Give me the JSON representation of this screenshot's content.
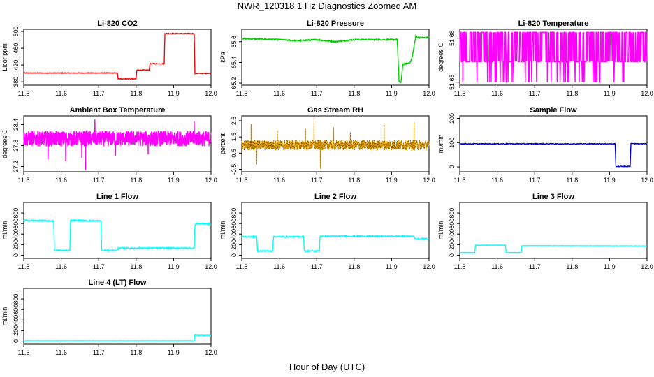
{
  "figure": {
    "title": "NWR_120318  1 Hz Diagnostics Zoomed AM",
    "xlabel": "Hour of Day (UTC)"
  },
  "chart_data": [
    {
      "type": "line",
      "title": "Li-820 CO2",
      "ylabel": "Licor ppm",
      "color": "#ff0000",
      "xlim": [
        11.5,
        12.0
      ],
      "ylim": [
        372,
        505
      ],
      "xticks": [
        "11.5",
        "11.6",
        "11.7",
        "11.8",
        "11.9",
        "12.0"
      ],
      "yticks": [
        380,
        420,
        460,
        500
      ],
      "noise": 0.8,
      "series": [
        {
          "x": [
            11.5,
            11.75,
            11.752,
            11.8,
            11.802,
            11.835,
            11.837,
            11.875,
            11.877,
            11.955,
            11.957,
            12.0
          ],
          "values": [
            401,
            401,
            387,
            387,
            408,
            408,
            423,
            423,
            495,
            495,
            400,
            400
          ]
        }
      ]
    },
    {
      "type": "line",
      "title": "Li-820 Pressure",
      "ylabel": "kPa",
      "color": "#00cc00",
      "xlim": [
        11.5,
        12.0
      ],
      "ylim": [
        65.18,
        65.72
      ],
      "xticks": [
        "11.5",
        "11.6",
        "11.7",
        "11.8",
        "11.9",
        "12.0"
      ],
      "yticks": [
        65.2,
        65.4,
        65.6
      ],
      "noise": 0.006,
      "series": [
        {
          "x": [
            11.5,
            11.6,
            11.65,
            11.7,
            11.75,
            11.8,
            11.85,
            11.9,
            11.915,
            11.92,
            11.925,
            11.93,
            11.95,
            11.955,
            11.965,
            11.97,
            12.0
          ],
          "values": [
            65.63,
            65.62,
            65.61,
            65.62,
            65.6,
            65.62,
            65.62,
            65.62,
            65.62,
            65.22,
            65.2,
            65.38,
            65.4,
            65.45,
            65.66,
            65.64,
            65.64
          ]
        }
      ]
    },
    {
      "type": "line",
      "title": "Li-820 Temperature",
      "ylabel": "degrees C",
      "color": "#ff00ff",
      "xlim": [
        11.5,
        12.0
      ],
      "ylim": [
        51.648,
        51.686
      ],
      "xticks": [
        "11.5",
        "11.6",
        "11.7",
        "11.8",
        "11.9",
        "12.0"
      ],
      "yticks": [
        51.65,
        51.68
      ],
      "levels": [
        51.664,
        51.684
      ],
      "low": 51.65,
      "series": [
        {
          "name": "",
          "values": []
        }
      ]
    },
    {
      "type": "line",
      "title": "Ambient Box Temperature",
      "ylabel": "degrees C",
      "color": "#ff00ff",
      "xlim": [
        11.5,
        12.0
      ],
      "ylim": [
        27.05,
        28.65
      ],
      "xticks": [
        "11.5",
        "11.6",
        "11.7",
        "11.8",
        "11.9",
        "12.0"
      ],
      "yticks": [
        27.2,
        27.8,
        28.4
      ],
      "center": 28.0,
      "spread": 0.22,
      "spikes": [
        [
          11.565,
          27.4
        ],
        [
          11.612,
          27.35
        ],
        [
          11.655,
          27.45
        ],
        [
          11.665,
          27.1
        ],
        [
          11.745,
          27.5
        ],
        [
          11.832,
          27.55
        ],
        [
          11.69,
          28.55
        ],
        [
          11.955,
          28.5
        ]
      ],
      "series": [
        {
          "name": "",
          "values": []
        }
      ]
    },
    {
      "type": "line",
      "title": "Gas Stream RH",
      "ylabel": "percent",
      "color": "#e69f00",
      "marker": "#000000",
      "xlim": [
        11.5,
        12.0
      ],
      "ylim": [
        -0.65,
        2.8
      ],
      "xticks": [
        "11.5",
        "11.6",
        "11.7",
        "11.8",
        "11.9",
        "12.0"
      ],
      "yticks": [
        -0.5,
        0.5,
        1.5,
        2.5
      ],
      "center": 1.0,
      "spread": 0.32,
      "spikes": [
        [
          11.525,
          2.3
        ],
        [
          11.54,
          -0.2
        ],
        [
          11.595,
          1.9
        ],
        [
          11.67,
          2.0
        ],
        [
          11.693,
          2.65
        ],
        [
          11.71,
          -0.45
        ],
        [
          11.745,
          2.1
        ],
        [
          11.79,
          1.8
        ],
        [
          11.88,
          2.3
        ],
        [
          11.96,
          2.4
        ]
      ],
      "series": [
        {
          "name": "",
          "values": []
        }
      ]
    },
    {
      "type": "line",
      "title": "Sample Flow",
      "ylabel": "ml/min",
      "color": "#0000cc",
      "xlim": [
        11.5,
        12.0
      ],
      "ylim": [
        -20,
        210
      ],
      "xticks": [
        "11.5",
        "11.6",
        "11.7",
        "11.8",
        "11.9",
        "12.0"
      ],
      "yticks": [
        0,
        100,
        200
      ],
      "noise": 1.5,
      "series": [
        {
          "x": [
            11.5,
            11.915,
            11.917,
            11.955,
            11.957,
            11.97,
            12.0
          ],
          "values": [
            95,
            95,
            2,
            2,
            97,
            95,
            95
          ]
        }
      ]
    },
    {
      "type": "line",
      "title": "Line 1 Flow",
      "ylabel": "ml/min",
      "color": "#00ffff",
      "xlim": [
        11.5,
        12.0
      ],
      "ylim": [
        -60,
        1000
      ],
      "xticks": [
        "11.5",
        "11.6",
        "11.7",
        "11.8",
        "11.9",
        "12.0"
      ],
      "yticks": [
        0,
        200,
        400,
        600,
        800
      ],
      "noise": 12,
      "series": [
        {
          "x": [
            11.5,
            11.58,
            11.582,
            11.623,
            11.625,
            11.706,
            11.708,
            11.75,
            11.752,
            11.955,
            11.957,
            11.96,
            12.0
          ],
          "values": [
            660,
            650,
            90,
            90,
            660,
            650,
            90,
            90,
            135,
            135,
            560,
            600,
            590
          ]
        }
      ]
    },
    {
      "type": "line",
      "title": "Line 2 Flow",
      "ylabel": "ml/min",
      "color": "#00ffff",
      "xlim": [
        11.5,
        12.0
      ],
      "ylim": [
        -60,
        1000
      ],
      "xticks": [
        "11.5",
        "11.6",
        "11.7",
        "11.8",
        "11.9",
        "12.0"
      ],
      "yticks": [
        0,
        200,
        400,
        600,
        800
      ],
      "noise": 12,
      "series": [
        {
          "x": [
            11.5,
            11.54,
            11.542,
            11.582,
            11.585,
            11.665,
            11.667,
            11.707,
            11.709,
            11.96,
            11.962,
            12.0
          ],
          "values": [
            350,
            350,
            80,
            80,
            350,
            350,
            80,
            80,
            360,
            360,
            310,
            310
          ]
        }
      ]
    },
    {
      "type": "line",
      "title": "Line 3 Flow",
      "ylabel": "ml/min",
      "color": "#00ffff",
      "xlim": [
        11.5,
        12.0
      ],
      "ylim": [
        -60,
        1000
      ],
      "xticks": [
        "11.5",
        "11.5",
        "11.6",
        "11.7",
        "11.8",
        "11.9",
        "12.0"
      ],
      "yticks": [
        0,
        200,
        400,
        600,
        800
      ],
      "noise": 3,
      "series": [
        {
          "x": [
            11.5,
            11.54,
            11.542,
            11.622,
            11.624,
            11.664,
            11.666,
            12.0
          ],
          "values": [
            50,
            50,
            190,
            190,
            50,
            50,
            180,
            175
          ]
        }
      ]
    },
    {
      "type": "line",
      "title": "Line 4 (LT) Flow",
      "ylabel": "ml/min",
      "color": "#00ffff",
      "xlim": [
        11.5,
        12.0
      ],
      "ylim": [
        -60,
        1000
      ],
      "xticks": [
        "11.5",
        "11.6",
        "11.7",
        "11.8",
        "11.9",
        "12.0"
      ],
      "yticks": [
        0,
        200,
        400,
        600,
        800
      ],
      "noise": 2,
      "series": [
        {
          "x": [
            11.5,
            11.955,
            11.957,
            11.96,
            12.0
          ],
          "values": [
            5,
            5,
            120,
            110,
            110
          ]
        }
      ]
    }
  ]
}
